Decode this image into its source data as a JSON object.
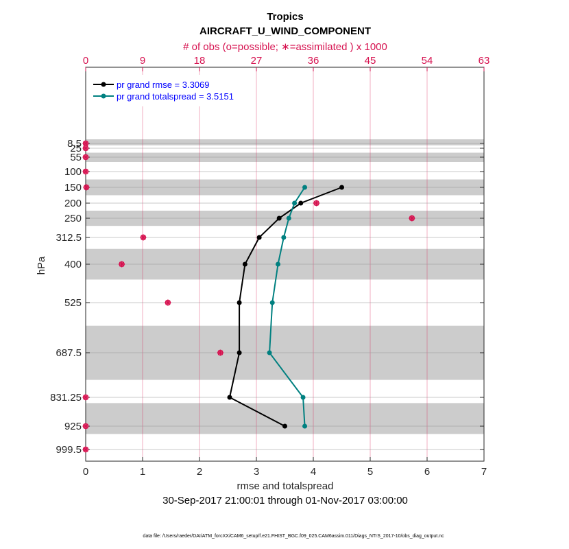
{
  "chart_data": {
    "type": "line",
    "title": "Tropics",
    "subtitle": "AIRCRAFT_U_WIND_COMPONENT",
    "top_axis_label": "# of obs (o=possible; ∗=assimilated ) x 1000",
    "top_ticks": [
      0,
      9,
      18,
      27,
      36,
      45,
      54,
      63
    ],
    "top_xlim": [
      0,
      63
    ],
    "xlabel": "rmse and totalspread",
    "x_ticks": [
      0,
      1,
      2,
      3,
      4,
      5,
      6,
      7
    ],
    "xlim": [
      0,
      7
    ],
    "ylabel": "hPa",
    "y_ticks": [
      "8.5",
      "25",
      "55",
      "100",
      "150",
      "200",
      "250",
      "312.5",
      "400",
      "525",
      "687.5",
      "831.25",
      "925",
      "999.5"
    ],
    "levels": [
      8.5,
      25,
      55,
      100,
      150,
      200,
      250,
      312.5,
      400,
      525,
      687.5,
      831.25,
      925,
      999.5
    ],
    "shaded_bands": [
      [
        0,
        15
      ],
      [
        40,
        70
      ],
      [
        125,
        175
      ],
      [
        225,
        275
      ],
      [
        350,
        450
      ],
      [
        600,
        775
      ],
      [
        850,
        950
      ]
    ],
    "date_range": "30-Sep-2017 21:00:01 through 01-Nov-2017 03:00:00",
    "footer": "data file: /Users/raeder/DAI/ATM_forcXX/CAM6_setup/f.e21.FHIST_BGC.f09_025.CAM6assim.011/Diags_NTrS_2017-10/obs_diag_output.nc",
    "series": [
      {
        "name": "pr grand rmse",
        "legend": "pr grand rmse = 3.3069",
        "color": "#000000",
        "levels": [
          150,
          200,
          250,
          312.5,
          400,
          525,
          687.5,
          831.25,
          925
        ],
        "values": [
          4.5,
          3.78,
          3.4,
          3.05,
          2.8,
          2.7,
          2.7,
          2.53,
          3.5
        ]
      },
      {
        "name": "pr grand totalspread",
        "legend": "pr grand totalspread = 3.5151",
        "color": "#008080",
        "levels": [
          150,
          200,
          250,
          312.5,
          400,
          525,
          687.5,
          831.25,
          925
        ],
        "values": [
          3.85,
          3.67,
          3.57,
          3.48,
          3.38,
          3.28,
          3.23,
          3.82,
          3.85
        ]
      }
    ],
    "obs_counts": {
      "levels": [
        8.5,
        25,
        55,
        100,
        150,
        200,
        250,
        312.5,
        400,
        525,
        687.5,
        831.25,
        925,
        999.5
      ],
      "possible_x1000": [
        0.0,
        0.0,
        0.0,
        0.0,
        0.1,
        36.5,
        51.6,
        9.1,
        5.7,
        13.0,
        21.3,
        0.0,
        0.0,
        0.0
      ],
      "assimilated_x1000": [
        0.0,
        0.0,
        0.0,
        0.0,
        0.1,
        36.5,
        51.6,
        9.1,
        5.7,
        13.0,
        21.3,
        0.0,
        0.0,
        0.0
      ],
      "color": "#d6114f"
    }
  }
}
